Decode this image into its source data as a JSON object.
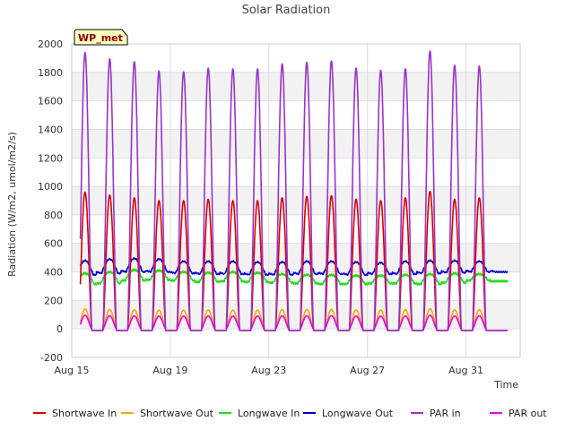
{
  "chart_data": {
    "type": "line",
    "title": "Solar Radiation",
    "xlabel": "Time",
    "ylabel": "Radiation (W/m2, umol/m2/s)",
    "badge": "WP_met",
    "ylim": [
      -200,
      2000
    ],
    "yticks": [
      -200,
      0,
      200,
      400,
      600,
      800,
      1000,
      1200,
      1400,
      1600,
      1800,
      2000
    ],
    "xlim_days": [
      15,
      33.2
    ],
    "xticks": [
      {
        "day": 15,
        "label": "Aug 15"
      },
      {
        "day": 19,
        "label": "Aug 19"
      },
      {
        "day": 23,
        "label": "Aug 23"
      },
      {
        "day": 27,
        "label": "Aug 27"
      },
      {
        "day": 31,
        "label": "Aug 31"
      }
    ],
    "grid": true,
    "legend_position": "bottom",
    "data_start_day": 15.35,
    "data_end_day": 32.7,
    "daily_peaks": {
      "days": [
        15,
        16,
        17,
        18,
        19,
        20,
        21,
        22,
        23,
        24,
        25,
        26,
        27,
        28,
        29,
        30,
        31,
        32
      ],
      "shortwave_in": [
        960,
        940,
        920,
        900,
        900,
        910,
        900,
        900,
        920,
        930,
        935,
        910,
        900,
        920,
        965,
        910,
        920,
        0
      ],
      "shortwave_out": [
        140,
        138,
        135,
        132,
        132,
        134,
        132,
        132,
        136,
        137,
        138,
        134,
        132,
        135,
        142,
        134,
        136,
        0
      ],
      "longwave_in_day": [
        390,
        400,
        415,
        410,
        400,
        395,
        400,
        395,
        385,
        380,
        380,
        375,
        375,
        380,
        385,
        390,
        385,
        0
      ],
      "longwave_in_night": [
        315,
        320,
        340,
        345,
        340,
        330,
        335,
        330,
        325,
        320,
        315,
        315,
        320,
        320,
        315,
        325,
        340,
        335
      ],
      "longwave_out_day": [
        480,
        490,
        495,
        490,
        475,
        475,
        475,
        470,
        470,
        475,
        475,
        470,
        465,
        475,
        480,
        480,
        475,
        0
      ],
      "longwave_out_night": [
        380,
        390,
        400,
        400,
        390,
        385,
        385,
        380,
        380,
        385,
        385,
        380,
        385,
        385,
        390,
        395,
        400,
        400
      ],
      "par_in": [
        1940,
        1895,
        1875,
        1810,
        1805,
        1830,
        1825,
        1825,
        1860,
        1870,
        1880,
        1830,
        1815,
        1825,
        1950,
        1850,
        1845,
        0
      ],
      "par_out": [
        95,
        93,
        92,
        90,
        90,
        91,
        90,
        90,
        92,
        93,
        93,
        91,
        90,
        91,
        96,
        91,
        92,
        0
      ]
    },
    "series": [
      {
        "name": "Shortwave In",
        "key": "shortwave_in",
        "color": "#dd0000"
      },
      {
        "name": "Shortwave Out",
        "key": "shortwave_out",
        "color": "#ffa500"
      },
      {
        "name": "Longwave In",
        "key": "longwave_in",
        "color": "#22dd22"
      },
      {
        "name": "Longwave Out",
        "key": "longwave_out",
        "color": "#0000cc"
      },
      {
        "name": "PAR in",
        "key": "par_in",
        "color": "#9a32cd"
      },
      {
        "name": "PAR out",
        "key": "par_out",
        "color": "#ee00ee"
      }
    ]
  }
}
